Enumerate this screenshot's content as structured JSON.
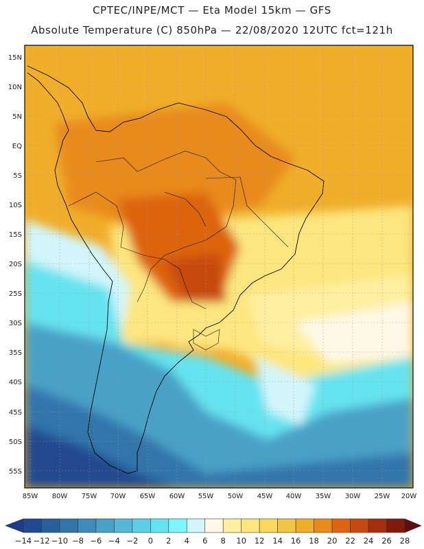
{
  "header": {
    "line1": "CPTEC/INPE/MCT —  Eta Model 15km — GFS",
    "line2": "Absolute Temperature (C) 850hPa — 22/08/2020 12UTC fct=121h"
  },
  "lat_ticks": [
    "15N",
    "10N",
    "5N",
    "EQ",
    "5S",
    "10S",
    "15S",
    "20S",
    "25S",
    "30S",
    "35S",
    "40S",
    "45S",
    "50S",
    "55S"
  ],
  "lon_ticks": [
    "85W",
    "80W",
    "75W",
    "70W",
    "65W",
    "60W",
    "55W",
    "50W",
    "45W",
    "40W",
    "35W",
    "30W",
    "25W",
    "20W"
  ],
  "colorbar": {
    "labels": [
      "-14",
      "-12",
      "-10",
      "-8",
      "-6",
      "-4",
      "-2",
      "0",
      "2",
      "4",
      "6",
      "8",
      "10",
      "12",
      "14",
      "16",
      "18",
      "20",
      "22",
      "24",
      "26",
      "28"
    ],
    "colors": [
      "#1d3a8c",
      "#21498f",
      "#2a5f9d",
      "#3375ab",
      "#3e8ab8",
      "#4aa1c7",
      "#56b7d6",
      "#5fcde5",
      "#66e3f0",
      "#7ff6fb",
      "#d2f6fb",
      "#fff8e6",
      "#ffefa0",
      "#fde67f",
      "#f9d85f",
      "#f3c545",
      "#f0ae2a",
      "#e98a1d",
      "#dd6410",
      "#c74810",
      "#a52f0c",
      "#7e1c0c",
      "#5e0d10"
    ]
  }
}
